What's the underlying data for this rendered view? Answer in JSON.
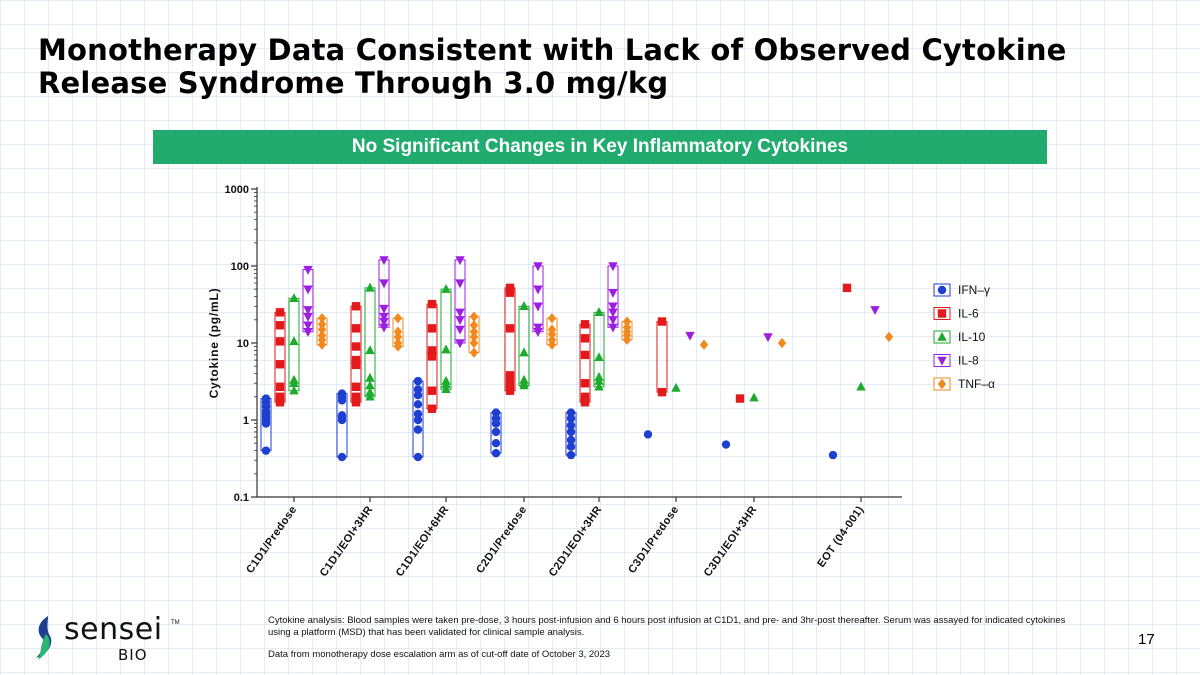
{
  "slide": {
    "title_line1": "Monotherapy Data Consistent with Lack of Observed Cytokine",
    "title_line2": "Release Syndrome Through 3.0 mg/kg",
    "banner": "No Significant Changes in Key Inflammatory Cytokines",
    "footnote_1": "Cytokine analysis: Blood samples were taken pre-dose, 3 hours post-infusion and 6 hours post infusion at C1D1, and pre- and 3hr-post thereafter. Serum was assayed for indicated cytokines using a platform (MSD) that has been validated for clinical sample analysis.",
    "footnote_2": "Data from monotherapy dose escalation arm as of cut-off date of October 3, 2023",
    "page_number": "17",
    "logo_name": "sensei",
    "logo_sub": "BIO",
    "logo_tm": "TM"
  },
  "chart_data": {
    "type": "scatter",
    "ylabel": "Cytokine (pg/mL)",
    "yscale": "log",
    "ylim": [
      0.1,
      1000
    ],
    "yticks": [
      {
        "value": 0.1,
        "label": "0.1"
      },
      {
        "value": 1,
        "label": "1"
      },
      {
        "value": 10,
        "label": "10"
      },
      {
        "value": 100,
        "label": "100"
      },
      {
        "value": 1000,
        "label": "1000"
      }
    ],
    "categories": [
      "C1D1/Predose",
      "C1D1/EOI+3HR",
      "C1D1/EOI+6HR",
      "C2D1/Predose",
      "C2D1/EOI+3HR",
      "C3D1/Predose",
      "C3D1/EOI+3HR",
      "EOT (04-001)"
    ],
    "legend_position": "right",
    "series": [
      {
        "name": "IFN–γ",
        "color": "#1f3fcf",
        "marker": "circle",
        "values": [
          [
            0.4,
            0.9,
            1.0,
            1.1,
            1.2,
            1.3,
            1.5,
            1.7,
            1.9
          ],
          [
            0.33,
            1.0,
            1.1,
            1.15,
            1.8,
            2.0,
            2.2
          ],
          [
            0.33,
            0.75,
            1.0,
            1.2,
            1.6,
            2.1,
            2.5,
            3.2
          ],
          [
            0.37,
            0.5,
            0.7,
            0.9,
            1.05,
            1.25
          ],
          [
            0.35,
            0.45,
            0.55,
            0.7,
            0.85,
            1.05,
            1.25
          ],
          [
            0.65
          ],
          [
            0.48
          ],
          [
            0.35
          ]
        ]
      },
      {
        "name": "IL-6",
        "color": "#e31a1c",
        "marker": "square",
        "values": [
          [
            1.7,
            2.0,
            2.7,
            5.3,
            10.5,
            17,
            25
          ],
          [
            1.7,
            2.0,
            2.7,
            5.2,
            6.0,
            9.0,
            15.5,
            30
          ],
          [
            1.4,
            2.4,
            6.7,
            8.0,
            15.5,
            32
          ],
          [
            2.4,
            3.0,
            3.8,
            15.5,
            45,
            52
          ],
          [
            1.7,
            2.0,
            3.0,
            7.0,
            11.5,
            17.5
          ],
          [
            2.3,
            19
          ],
          [
            1.9
          ],
          [
            52
          ]
        ]
      },
      {
        "name": "IL-10",
        "color": "#1eaa2d",
        "marker": "triangle-up",
        "values": [
          [
            2.4,
            3.0,
            3.3,
            10.5,
            38
          ],
          [
            2.0,
            2.3,
            2.8,
            3.5,
            8.0,
            52
          ],
          [
            2.5,
            2.9,
            3.2,
            8.2,
            50
          ],
          [
            2.8,
            3.0,
            3.3,
            7.5,
            30
          ],
          [
            2.7,
            3.2,
            3.6,
            6.5,
            25
          ],
          [
            2.6
          ],
          [
            1.95
          ],
          [
            2.7
          ]
        ]
      },
      {
        "name": "IL-8",
        "color": "#9b1fe0",
        "marker": "triangle-down",
        "values": [
          [
            14,
            17,
            22,
            27,
            50,
            90
          ],
          [
            16,
            19,
            22,
            28,
            60,
            120
          ],
          [
            10,
            15,
            20,
            25,
            60,
            120
          ],
          [
            14,
            16,
            30,
            50,
            100
          ],
          [
            16,
            20,
            25,
            30,
            45,
            100
          ],
          [
            12.5
          ],
          [
            12
          ],
          [
            27
          ]
        ]
      },
      {
        "name": "TNF–α",
        "color": "#f08a1e",
        "marker": "diamond",
        "values": [
          [
            9.5,
            11,
            12.5,
            15,
            17.5,
            21
          ],
          [
            9.0,
            10,
            12,
            14,
            21
          ],
          [
            7.5,
            10,
            12,
            14,
            17,
            22
          ],
          [
            9.5,
            11,
            13,
            15,
            21
          ],
          [
            11,
            12.5,
            14,
            16,
            19
          ],
          [
            9.5
          ],
          [
            10
          ],
          [
            12
          ]
        ]
      }
    ]
  }
}
